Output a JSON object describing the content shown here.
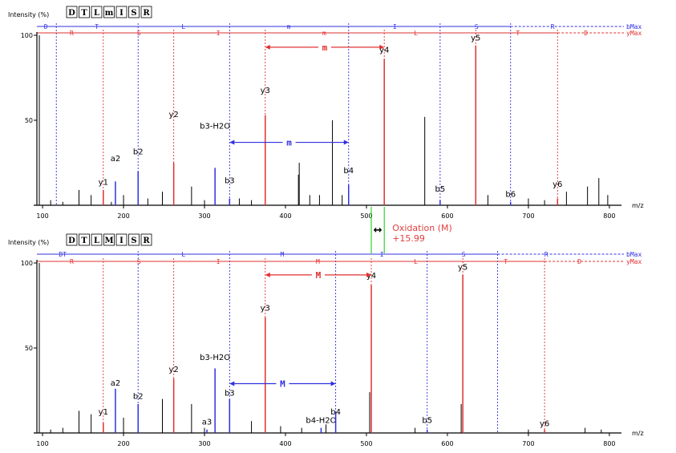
{
  "colors": {
    "b_ion": "#3030e0",
    "y_ion": "#e03030",
    "peak": "#000000",
    "shift": "#00cc00",
    "annotation": "#e04040"
  },
  "shift_annotation": {
    "label": "Oxidation (M)",
    "value": "+15.99",
    "arrow": "↔"
  },
  "chart_data": [
    {
      "type": "mass-spectrum",
      "ylabel": "Intensity (%)",
      "xlabel": "m/z",
      "xlim": [
        93,
        810
      ],
      "ylim": [
        0,
        100
      ],
      "x_ticks": [
        100,
        200,
        300,
        400,
        500,
        600,
        700,
        800
      ],
      "y_ticks": [
        50,
        100
      ],
      "sequence": [
        "D",
        "T",
        "L",
        "m",
        "I",
        "S",
        "R"
      ],
      "b_ladder": {
        "label": "bMax",
        "letters": [
          {
            "text": "D",
            "x": 104
          },
          {
            "text": "T",
            "x": 167
          },
          {
            "text": "L",
            "x": 274
          },
          {
            "text": "m",
            "x": 404
          },
          {
            "text": "I",
            "x": 535
          },
          {
            "text": "S",
            "x": 636
          },
          {
            "text": "R",
            "x": 730
          }
        ],
        "cleavages": [
          117,
          218,
          331,
          478,
          591,
          678
        ]
      },
      "y_ladder": {
        "label": "yMax",
        "letters": [
          {
            "text": "R",
            "x": 136
          },
          {
            "text": "S",
            "x": 219
          },
          {
            "text": "I",
            "x": 317
          },
          {
            "text": "m",
            "x": 448
          },
          {
            "text": "L",
            "x": 561
          },
          {
            "text": "T",
            "x": 687
          },
          {
            "text": "D",
            "x": 771
          }
        ],
        "cleavages": [
          175,
          262,
          375,
          522,
          635,
          736
        ]
      },
      "shift_brackets": [
        {
          "label": "m",
          "x1": 375,
          "x2": 522,
          "y": 93
        },
        {
          "label": "m",
          "x1": 331,
          "x2": 478,
          "y": 37
        }
      ],
      "labeled_peaks": [
        {
          "label": "y1",
          "x": 175,
          "y": 9,
          "ion": "y",
          "label_y": 11
        },
        {
          "label": "a2",
          "x": 190,
          "y": 14,
          "ion": "b",
          "label_y": 25
        },
        {
          "label": "b2",
          "x": 218,
          "y": 20,
          "ion": "b",
          "label_y": 29
        },
        {
          "label": "y2",
          "x": 262,
          "y": 25,
          "ion": "y",
          "label_y": 51
        },
        {
          "label": "b3-H2O",
          "x": 313,
          "y": 22,
          "ion": "b",
          "label_y": 44
        },
        {
          "label": "b3",
          "x": 331,
          "y": 4,
          "ion": "b",
          "label_y": 12
        },
        {
          "label": "y3",
          "x": 375,
          "y": 53,
          "ion": "y",
          "label_y": 65
        },
        {
          "label": "b4",
          "x": 478,
          "y": 12,
          "ion": "b",
          "label_y": 18
        },
        {
          "label": "y4",
          "x": 522,
          "y": 86,
          "ion": "y",
          "label_y": 89
        },
        {
          "label": "b5",
          "x": 591,
          "y": 3,
          "ion": "b",
          "label_y": 7
        },
        {
          "label": "y5",
          "x": 635,
          "y": 94,
          "ion": "y",
          "label_y": 96
        },
        {
          "label": "b6",
          "x": 678,
          "y": 2,
          "ion": "b",
          "label_y": 4
        },
        {
          "label": "y6",
          "x": 736,
          "y": 4,
          "ion": "y",
          "label_y": 10
        }
      ],
      "other_peaks": [
        {
          "x": 96,
          "y": 100
        },
        {
          "x": 110,
          "y": 3
        },
        {
          "x": 125,
          "y": 2
        },
        {
          "x": 145,
          "y": 9
        },
        {
          "x": 160,
          "y": 6
        },
        {
          "x": 185,
          "y": 2
        },
        {
          "x": 200,
          "y": 6
        },
        {
          "x": 230,
          "y": 4
        },
        {
          "x": 248,
          "y": 8
        },
        {
          "x": 284,
          "y": 11
        },
        {
          "x": 300,
          "y": 3
        },
        {
          "x": 343,
          "y": 4
        },
        {
          "x": 358,
          "y": 3
        },
        {
          "x": 416,
          "y": 18
        },
        {
          "x": 417,
          "y": 25
        },
        {
          "x": 430,
          "y": 6
        },
        {
          "x": 442,
          "y": 6
        },
        {
          "x": 458,
          "y": 50
        },
        {
          "x": 470,
          "y": 6
        },
        {
          "x": 572,
          "y": 52
        },
        {
          "x": 650,
          "y": 6
        },
        {
          "x": 700,
          "y": 4
        },
        {
          "x": 720,
          "y": 3
        },
        {
          "x": 747,
          "y": 8
        },
        {
          "x": 773,
          "y": 11
        },
        {
          "x": 787,
          "y": 16
        },
        {
          "x": 798,
          "y": 6
        }
      ]
    },
    {
      "type": "mass-spectrum",
      "ylabel": "Intensity (%)",
      "xlabel": "m/z",
      "xlim": [
        93,
        810
      ],
      "ylim": [
        0,
        100
      ],
      "x_ticks": [
        100,
        200,
        300,
        400,
        500,
        600,
        700,
        800
      ],
      "y_ticks": [
        50,
        100
      ],
      "sequence": [
        "D",
        "T",
        "L",
        "M",
        "I",
        "S",
        "R"
      ],
      "b_ladder": {
        "label": "bMax",
        "letters": [
          {
            "text": "DT",
            "x": 125
          },
          {
            "text": "L",
            "x": 274
          },
          {
            "text": "M",
            "x": 396
          },
          {
            "text": "I",
            "x": 519
          },
          {
            "text": "S",
            "x": 620
          },
          {
            "text": "R",
            "x": 722
          }
        ],
        "cleavages": [
          218,
          331,
          462,
          575,
          662
        ]
      },
      "y_ladder": {
        "label": "yMax",
        "letters": [
          {
            "text": "R",
            "x": 136
          },
          {
            "text": "S",
            "x": 219
          },
          {
            "text": "I",
            "x": 317
          },
          {
            "text": "M",
            "x": 440
          },
          {
            "text": "L",
            "x": 561
          },
          {
            "text": "T",
            "x": 672
          },
          {
            "text": "D",
            "x": 763
          }
        ],
        "cleavages": [
          175,
          262,
          375,
          506,
          619,
          720
        ]
      },
      "shift_brackets": [
        {
          "label": "M",
          "x1": 375,
          "x2": 506,
          "y": 93
        },
        {
          "label": "M",
          "x1": 331,
          "x2": 462,
          "y": 29
        }
      ],
      "labeled_peaks": [
        {
          "label": "y1",
          "x": 175,
          "y": 6,
          "ion": "y",
          "label_y": 10
        },
        {
          "label": "a2",
          "x": 190,
          "y": 26,
          "ion": "b",
          "label_y": 27
        },
        {
          "label": "b2",
          "x": 218,
          "y": 17,
          "ion": "b",
          "label_y": 19
        },
        {
          "label": "y2",
          "x": 262,
          "y": 32,
          "ion": "y",
          "label_y": 35
        },
        {
          "label": "a3",
          "x": 303,
          "y": 2,
          "ion": "b",
          "label_y": 4
        },
        {
          "label": "b3-H2O",
          "x": 313,
          "y": 38,
          "ion": "b",
          "label_y": 42
        },
        {
          "label": "b3",
          "x": 331,
          "y": 20,
          "ion": "b",
          "label_y": 21
        },
        {
          "label": "y3",
          "x": 375,
          "y": 68,
          "ion": "y",
          "label_y": 71
        },
        {
          "label": "b4-H2O",
          "x": 444,
          "y": 3,
          "ion": "b",
          "label_y": 5
        },
        {
          "label": "b4",
          "x": 462,
          "y": 12,
          "ion": "b",
          "label_y": 10
        },
        {
          "label": "y4",
          "x": 506,
          "y": 87,
          "ion": "y",
          "label_y": 90
        },
        {
          "label": "b5",
          "x": 575,
          "y": 2,
          "ion": "b",
          "label_y": 5
        },
        {
          "label": "y5",
          "x": 619,
          "y": 93,
          "ion": "y",
          "label_y": 95
        },
        {
          "label": "y6",
          "x": 720,
          "y": 2,
          "ion": "y",
          "label_y": 3
        }
      ],
      "other_peaks": [
        {
          "x": 96,
          "y": 100
        },
        {
          "x": 110,
          "y": 2
        },
        {
          "x": 125,
          "y": 3
        },
        {
          "x": 145,
          "y": 13
        },
        {
          "x": 160,
          "y": 11
        },
        {
          "x": 200,
          "y": 9
        },
        {
          "x": 248,
          "y": 20
        },
        {
          "x": 284,
          "y": 17
        },
        {
          "x": 300,
          "y": 3
        },
        {
          "x": 358,
          "y": 7
        },
        {
          "x": 394,
          "y": 4
        },
        {
          "x": 420,
          "y": 3
        },
        {
          "x": 450,
          "y": 5
        },
        {
          "x": 504,
          "y": 24
        },
        {
          "x": 560,
          "y": 3
        },
        {
          "x": 617,
          "y": 17
        },
        {
          "x": 700,
          "y": 2
        },
        {
          "x": 770,
          "y": 3
        },
        {
          "x": 790,
          "y": 2
        }
      ]
    }
  ]
}
